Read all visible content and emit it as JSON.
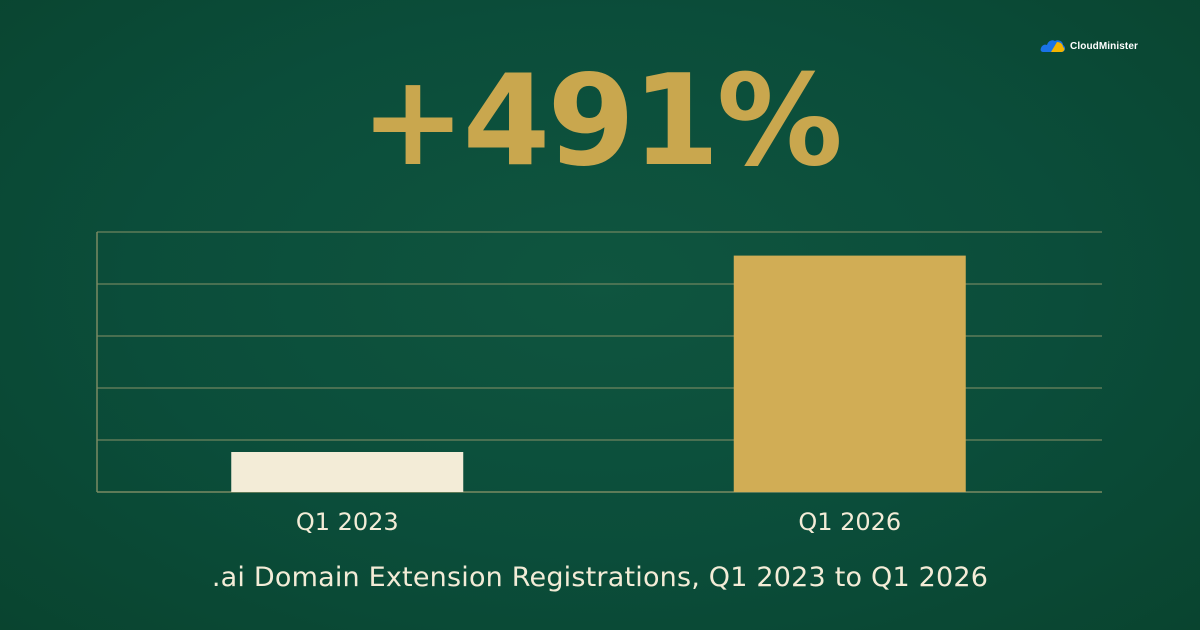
{
  "brand": {
    "name": "CloudMinister",
    "logo_icon": "cloud-logo-icon"
  },
  "colors": {
    "background": "#0b4d3a",
    "gold": "#c9a74e",
    "cream": "#f3ecd7",
    "grid": "#7a8a63"
  },
  "headline": "+491%",
  "chart_data": {
    "type": "bar",
    "categories": [
      "Q1 2023",
      "Q1 2026"
    ],
    "values": [
      1,
      5.91
    ],
    "bar_colors": [
      "#f3ecd7",
      "#d1ad55"
    ],
    "title": ".ai Domain Extension Registrations, Q1 2023 to Q1 2026",
    "xlabel": "",
    "ylabel": "",
    "ylim": [
      0,
      6.5
    ],
    "grid": true,
    "y_tick_labels_shown": false,
    "legend": "none"
  }
}
